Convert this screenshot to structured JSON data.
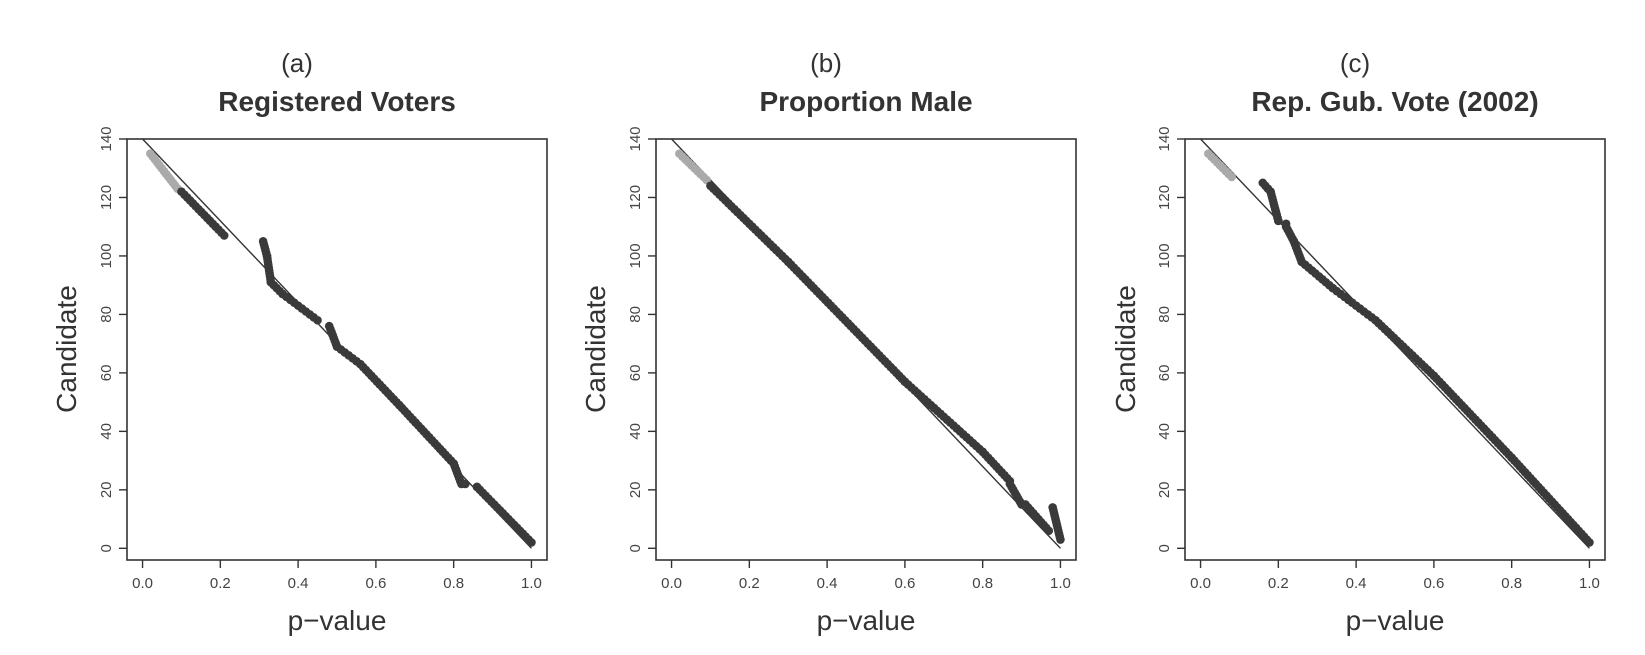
{
  "chart_data": [
    {
      "type": "scatter",
      "panel": "(a)",
      "title": "Registered Voters",
      "xlabel": "p−value",
      "ylabel": "Candidate",
      "xlim": [
        -0.04,
        1.04
      ],
      "ylim": [
        -4,
        140
      ],
      "xticks": [
        "0.0",
        "0.2",
        "0.4",
        "0.6",
        "0.8",
        "1.0"
      ],
      "yticks": [
        "0",
        "20",
        "40",
        "60",
        "80",
        "100",
        "120",
        "140"
      ],
      "reference_line": [
        [
          0.0,
          140
        ],
        [
          1.0,
          0
        ]
      ],
      "low_p_color": "#aaaaaa",
      "point_color": "#3a3a3a",
      "segments": [
        [
          0.02,
          135,
          0.09,
          123
        ],
        [
          0.1,
          122,
          0.21,
          107
        ],
        [
          0.31,
          105,
          0.32,
          100
        ],
        [
          0.32,
          100,
          0.33,
          91
        ],
        [
          0.33,
          91,
          0.36,
          87
        ],
        [
          0.36,
          87,
          0.45,
          78
        ],
        [
          0.48,
          76,
          0.5,
          69
        ],
        [
          0.5,
          69,
          0.56,
          63
        ],
        [
          0.56,
          63,
          0.66,
          49
        ],
        [
          0.66,
          49,
          0.8,
          29
        ],
        [
          0.8,
          29,
          0.82,
          22
        ],
        [
          0.83,
          22,
          0.86,
          21
        ],
        [
          0.86,
          21,
          1.0,
          2
        ]
      ]
    },
    {
      "type": "scatter",
      "panel": "(b)",
      "title": "Proportion Male",
      "xlabel": "p−value",
      "ylabel": "Candidate",
      "xlim": [
        -0.04,
        1.04
      ],
      "ylim": [
        -4,
        140
      ],
      "xticks": [
        "0.0",
        "0.2",
        "0.4",
        "0.6",
        "0.8",
        "1.0"
      ],
      "yticks": [
        "0",
        "20",
        "40",
        "60",
        "80",
        "100",
        "120",
        "140"
      ],
      "reference_line": [
        [
          0.0,
          140
        ],
        [
          1.0,
          0
        ]
      ],
      "low_p_color": "#aaaaaa",
      "point_color": "#3a3a3a",
      "segments": [
        [
          0.02,
          135,
          0.09,
          126
        ],
        [
          0.1,
          124,
          0.3,
          98
        ],
        [
          0.3,
          98,
          0.6,
          57
        ],
        [
          0.6,
          57,
          0.8,
          33
        ],
        [
          0.8,
          33,
          0.87,
          23
        ],
        [
          0.87,
          22,
          0.9,
          15
        ],
        [
          0.91,
          15,
          0.97,
          6
        ],
        [
          0.98,
          14,
          1.0,
          3
        ]
      ]
    },
    {
      "type": "scatter",
      "panel": "(c)",
      "title": "Rep. Gub. Vote (2002)",
      "xlabel": "p−value",
      "ylabel": "Candidate",
      "xlim": [
        -0.04,
        1.04
      ],
      "ylim": [
        -4,
        140
      ],
      "xticks": [
        "0.0",
        "0.2",
        "0.4",
        "0.6",
        "0.8",
        "1.0"
      ],
      "yticks": [
        "0",
        "20",
        "40",
        "60",
        "80",
        "100",
        "120",
        "140"
      ],
      "reference_line": [
        [
          0.0,
          140
        ],
        [
          1.0,
          0
        ]
      ],
      "low_p_color": "#aaaaaa",
      "point_color": "#3a3a3a",
      "segments": [
        [
          0.02,
          135,
          0.08,
          127
        ],
        [
          0.16,
          125,
          0.18,
          122
        ],
        [
          0.18,
          122,
          0.2,
          112
        ],
        [
          0.2,
          112,
          0.22,
          111
        ],
        [
          0.22,
          110,
          0.24,
          105
        ],
        [
          0.24,
          105,
          0.26,
          98
        ],
        [
          0.26,
          98,
          0.34,
          89
        ],
        [
          0.34,
          89,
          0.45,
          78
        ],
        [
          0.45,
          78,
          0.6,
          59
        ],
        [
          0.6,
          59,
          0.8,
          31
        ],
        [
          0.8,
          31,
          1.0,
          2
        ]
      ]
    }
  ]
}
